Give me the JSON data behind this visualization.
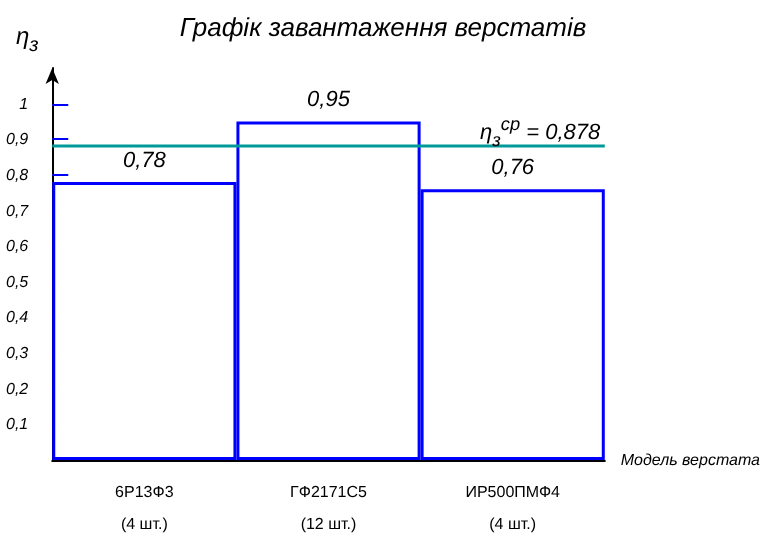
{
  "chart_data": {
    "type": "bar",
    "title": "Графік завантаження верстатів",
    "ylabel": "η$_{з}$",
    "xlabel": "Модель верстата",
    "categories": [
      "6Р13Ф3\n(4 шт.)",
      "ГФ2171С5\n(12 шт.)",
      "ИР500ПМФ4\n(4 шт.)"
    ],
    "values": [
      0.78,
      0.95,
      0.76
    ],
    "color": "#0000ff",
    "value_labels": [
      "0,78",
      "0,95",
      "0,76"
    ],
    "ylim": [
      0,
      1.1
    ],
    "yticks": [
      {
        "value": 0.1,
        "label": "0,1"
      },
      {
        "value": 0.2,
        "label": "0,2"
      },
      {
        "value": 0.3,
        "label": "0,3"
      },
      {
        "value": 0.4,
        "label": "0,4"
      },
      {
        "value": 0.5,
        "label": "0,5"
      },
      {
        "value": 0.6,
        "label": "0,6"
      },
      {
        "value": 0.7,
        "label": "0,7"
      },
      {
        "value": 0.8,
        "label": "0,8"
      },
      {
        "value": 0.9,
        "label": "0,9"
      },
      {
        "value": 1,
        "label": "1"
      }
    ],
    "ref_lines": [
      {
        "axis": "y",
        "value": 0.878,
        "label": "η$_{з}$$^{ср}$ = 0,878",
        "color": "#009999"
      }
    ],
    "grid": false
  }
}
